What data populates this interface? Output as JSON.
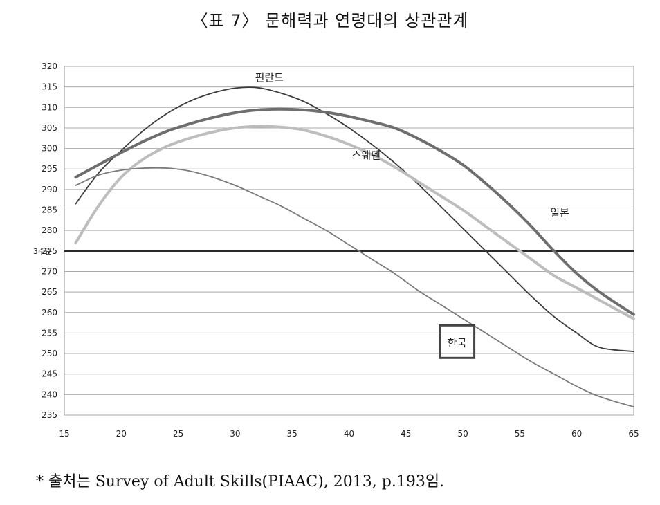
{
  "title": "〈표 7〉 문해력과 연령대의 상관관계",
  "source": "* 출처는 Survey of Adult Skills(PIAAC), 2013, p.193임.",
  "chart_data": {
    "type": "line",
    "xlim": [
      15,
      65
    ],
    "ylim": [
      235,
      320
    ],
    "xticks": [
      "15",
      "20",
      "25",
      "30",
      "35",
      "40",
      "45",
      "50",
      "55",
      "60",
      "65"
    ],
    "yticks": [
      "320",
      "315",
      "310",
      "305",
      "300",
      "295",
      "290",
      "285",
      "280",
      "275",
      "270",
      "265",
      "260",
      "255",
      "250",
      "245",
      "240",
      "235"
    ],
    "grid": true,
    "reference_line": {
      "y": 275,
      "label": "3수준"
    },
    "series": [
      {
        "name": "핀란드",
        "color": "#3a3a3a",
        "width": 1.8,
        "label_pos": [
          33,
          316.5
        ],
        "points": [
          [
            16,
            286.5
          ],
          [
            18,
            294
          ],
          [
            20,
            299.5
          ],
          [
            22,
            304.5
          ],
          [
            24,
            308.5
          ],
          [
            26,
            311.5
          ],
          [
            28,
            313.5
          ],
          [
            30,
            314.7
          ],
          [
            32,
            314.8
          ],
          [
            34,
            313.5
          ],
          [
            36,
            311.5
          ],
          [
            38,
            308.5
          ],
          [
            40,
            305
          ],
          [
            42,
            301
          ],
          [
            44,
            296.5
          ],
          [
            46,
            291.5
          ],
          [
            48,
            286
          ],
          [
            50,
            280.5
          ],
          [
            52,
            275
          ],
          [
            54,
            269.5
          ],
          [
            56,
            264
          ],
          [
            58,
            259
          ],
          [
            60,
            255
          ],
          [
            62,
            251.5
          ],
          [
            65,
            250.5
          ]
        ]
      },
      {
        "name": "일본",
        "color": "#6e6e6e",
        "width": 4,
        "label_pos": [
          58.5,
          283.5
        ],
        "points": [
          [
            16,
            293
          ],
          [
            18,
            296
          ],
          [
            20,
            299
          ],
          [
            22,
            301.8
          ],
          [
            24,
            304.2
          ],
          [
            26,
            306
          ],
          [
            28,
            307.5
          ],
          [
            30,
            308.7
          ],
          [
            32,
            309.4
          ],
          [
            34,
            309.6
          ],
          [
            36,
            309.4
          ],
          [
            38,
            308.8
          ],
          [
            40,
            307.8
          ],
          [
            42,
            306.5
          ],
          [
            44,
            305
          ],
          [
            46,
            302.5
          ],
          [
            48,
            299.5
          ],
          [
            50,
            296
          ],
          [
            52,
            291.5
          ],
          [
            54,
            286.5
          ],
          [
            56,
            281
          ],
          [
            58,
            275
          ],
          [
            60,
            269.5
          ],
          [
            62,
            265
          ],
          [
            65,
            259.5
          ]
        ]
      },
      {
        "name": "스웨덴",
        "color": "#bdbdbd",
        "width": 4,
        "label_pos": [
          41.5,
          297.5
        ],
        "points": [
          [
            16,
            277
          ],
          [
            18,
            286
          ],
          [
            20,
            293
          ],
          [
            22,
            297.5
          ],
          [
            24,
            300.5
          ],
          [
            26,
            302.5
          ],
          [
            28,
            304
          ],
          [
            30,
            305
          ],
          [
            32,
            305.4
          ],
          [
            34,
            305.2
          ],
          [
            36,
            304.5
          ],
          [
            38,
            303
          ],
          [
            40,
            301
          ],
          [
            42,
            298.5
          ],
          [
            44,
            295.5
          ],
          [
            46,
            292
          ],
          [
            48,
            288.5
          ],
          [
            50,
            285
          ],
          [
            52,
            281
          ],
          [
            54,
            277
          ],
          [
            56,
            273
          ],
          [
            58,
            269
          ],
          [
            60,
            266
          ],
          [
            62,
            263
          ],
          [
            65,
            258.5
          ]
        ]
      },
      {
        "name": "한국",
        "color": "#7a7a7a",
        "width": 1.8,
        "label_pos": [
          49.3,
          253.5
        ],
        "points": [
          [
            16,
            291
          ],
          [
            18,
            293.5
          ],
          [
            20,
            294.7
          ],
          [
            22,
            295.2
          ],
          [
            24,
            295.2
          ],
          [
            26,
            294.5
          ],
          [
            28,
            293
          ],
          [
            30,
            291
          ],
          [
            32,
            288.5
          ],
          [
            34,
            286
          ],
          [
            36,
            283
          ],
          [
            38,
            280
          ],
          [
            40,
            276.5
          ],
          [
            42,
            273
          ],
          [
            44,
            269.5
          ],
          [
            46,
            265.5
          ],
          [
            48,
            262
          ],
          [
            50,
            258.5
          ],
          [
            52,
            255
          ],
          [
            54,
            251.5
          ],
          [
            56,
            248
          ],
          [
            58,
            245
          ],
          [
            60,
            242
          ],
          [
            62,
            239.5
          ],
          [
            65,
            237
          ]
        ]
      }
    ]
  }
}
